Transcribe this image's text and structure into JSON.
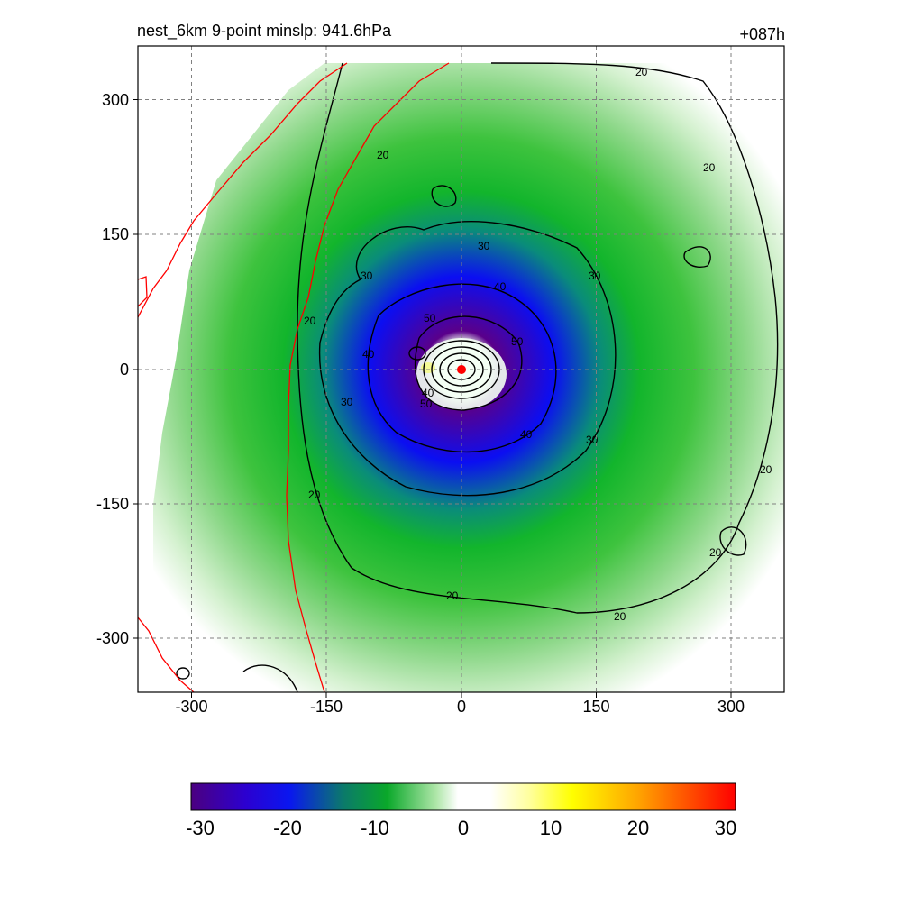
{
  "chart_data": {
    "type": "heatmap",
    "title": "nest_6km  9-point minslp: 941.6hPa",
    "forecast_hour": "+087h",
    "xlabel": "",
    "ylabel": "",
    "xlim": [
      -360,
      360
    ],
    "ylim": [
      -360,
      360
    ],
    "x_ticks": [
      -300,
      -150,
      0,
      150,
      300
    ],
    "y_ticks": [
      300,
      150,
      0,
      -150,
      -300
    ],
    "grid": true,
    "storm_center": [
      0,
      0
    ],
    "contour_levels": [
      20,
      30,
      40,
      50
    ],
    "fill_field_samples": [
      {
        "radius_km": 0,
        "value": 0
      },
      {
        "radius_km": 40,
        "value": -2
      },
      {
        "radius_km": 70,
        "value": -30
      },
      {
        "radius_km": 120,
        "value": -24
      },
      {
        "radius_km": 170,
        "value": -18
      },
      {
        "radius_km": 230,
        "value": -12
      },
      {
        "radius_km": 280,
        "value": -8
      },
      {
        "radius_km": 330,
        "value": -4
      }
    ],
    "colorbar": {
      "range": [
        -30,
        30
      ],
      "ticks": [
        "-30",
        "-20",
        "-10",
        "0",
        "10",
        "20",
        "30"
      ],
      "colors": [
        "#4b0080",
        "#0a16f0",
        "#0aa82a",
        "#ffffff",
        "#ffff00",
        "#ffa500",
        "#ff0000"
      ]
    },
    "colors": {
      "contour": "#000000",
      "boundary": "#ff0000",
      "center_marker": "#ff0000"
    }
  }
}
